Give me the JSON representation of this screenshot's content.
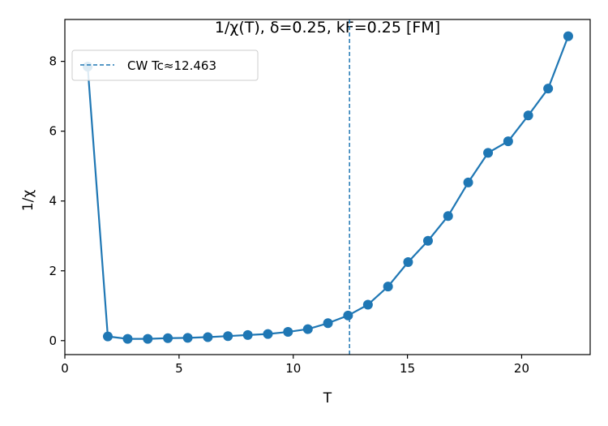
{
  "chart_data": {
    "type": "line",
    "title": "1/χ(T), δ=0.25, kF=0.25  [FM]",
    "xlabel": "T",
    "ylabel": "1/χ",
    "xlim": [
      0,
      23
    ],
    "ylim": [
      -0.4,
      9.2
    ],
    "xticks": [
      0,
      5,
      10,
      15,
      20
    ],
    "yticks": [
      0,
      2,
      4,
      6,
      8
    ],
    "grid": false,
    "legend_position": "top-left",
    "series": [
      {
        "color": "#1f77b4",
        "marker": "circle",
        "x": [
          1.0,
          1.88,
          2.75,
          3.63,
          4.51,
          5.38,
          6.26,
          7.14,
          8.01,
          8.89,
          9.77,
          10.64,
          11.52,
          12.4,
          13.27,
          14.15,
          15.03,
          15.9,
          16.78,
          17.66,
          18.53,
          19.41,
          20.29,
          21.16,
          22.04
        ],
        "y": [
          7.85,
          0.12,
          0.05,
          0.05,
          0.07,
          0.08,
          0.1,
          0.13,
          0.16,
          0.19,
          0.25,
          0.33,
          0.5,
          0.72,
          1.03,
          1.55,
          2.25,
          2.86,
          3.57,
          4.53,
          5.38,
          5.71,
          6.45,
          7.22,
          8.72
        ]
      }
    ],
    "vline": {
      "x": 12.463,
      "label": "CW Tc≈12.463",
      "color": "#1f77b4",
      "style": "dashed"
    }
  }
}
